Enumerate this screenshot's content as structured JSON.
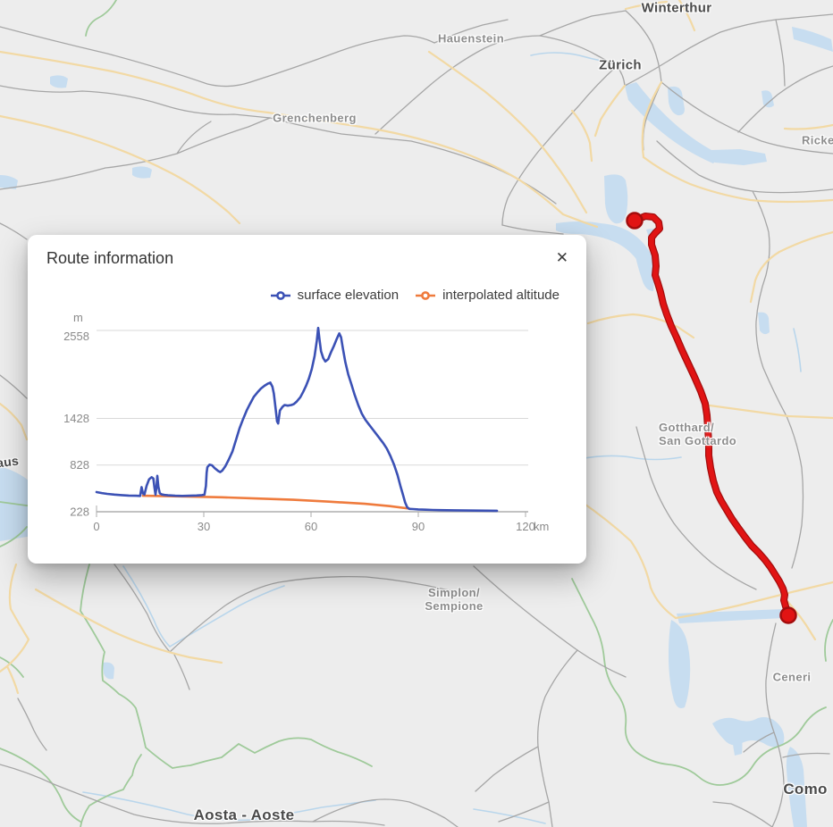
{
  "panel": {
    "title": "Route information",
    "close_label": "✕",
    "legend": [
      {
        "label": "surface elevation",
        "color": "#3b51b5"
      },
      {
        "label": "interpolated altitude",
        "color": "#ef7b3d"
      }
    ]
  },
  "chart_data": {
    "type": "line",
    "title": "",
    "xlabel": "km",
    "ylabel": "m",
    "xticks": [
      0,
      30,
      60,
      90,
      120
    ],
    "yticks": [
      228,
      828,
      1428,
      2558
    ],
    "xlim": [
      0,
      122.5
    ],
    "ylim": [
      228,
      2600
    ],
    "grid": "horizontal",
    "legend_position": "top-right",
    "series": [
      {
        "name": "surface elevation",
        "color": "#3b51b5",
        "points": [
          [
            0,
            480
          ],
          [
            1.5,
            468
          ],
          [
            3,
            458
          ],
          [
            5,
            448
          ],
          [
            7,
            441
          ],
          [
            9,
            436
          ],
          [
            11,
            433
          ],
          [
            12.2,
            431
          ],
          [
            12.6,
            545
          ],
          [
            13,
            462
          ],
          [
            13.4,
            450
          ],
          [
            14,
            560
          ],
          [
            14.7,
            645
          ],
          [
            15.4,
            672
          ],
          [
            15.9,
            655
          ],
          [
            16.2,
            540
          ],
          [
            16.5,
            448
          ],
          [
            16.8,
            555
          ],
          [
            17,
            690
          ],
          [
            17.3,
            550
          ],
          [
            17.7,
            465
          ],
          [
            18.3,
            450
          ],
          [
            19,
            444
          ],
          [
            20,
            439
          ],
          [
            22,
            433
          ],
          [
            24,
            431
          ],
          [
            26,
            433
          ],
          [
            28,
            437
          ],
          [
            29.5,
            441
          ],
          [
            30.2,
            448
          ],
          [
            30.6,
            560
          ],
          [
            30.8,
            730
          ],
          [
            31,
            800
          ],
          [
            31.6,
            833
          ],
          [
            32.3,
            825
          ],
          [
            33,
            790
          ],
          [
            34,
            752
          ],
          [
            34.6,
            738
          ],
          [
            35.2,
            758
          ],
          [
            36,
            810
          ],
          [
            37,
            900
          ],
          [
            38,
            1000
          ],
          [
            39,
            1150
          ],
          [
            40,
            1300
          ],
          [
            41,
            1420
          ],
          [
            42,
            1530
          ],
          [
            43,
            1620
          ],
          [
            44,
            1705
          ],
          [
            45,
            1762
          ],
          [
            46,
            1812
          ],
          [
            47,
            1848
          ],
          [
            48,
            1876
          ],
          [
            48.6,
            1888
          ],
          [
            49.2,
            1835
          ],
          [
            49.6,
            1745
          ],
          [
            50.1,
            1550
          ],
          [
            50.5,
            1390
          ],
          [
            50.8,
            1362
          ],
          [
            51.3,
            1530
          ],
          [
            52,
            1575
          ],
          [
            52.6,
            1600
          ],
          [
            53.5,
            1592
          ],
          [
            54.5,
            1600
          ],
          [
            55.2,
            1612
          ],
          [
            56,
            1645
          ],
          [
            57,
            1700
          ],
          [
            57.8,
            1768
          ],
          [
            58.6,
            1845
          ],
          [
            59.4,
            1940
          ],
          [
            60.2,
            2060
          ],
          [
            61,
            2230
          ],
          [
            61.6,
            2420
          ],
          [
            62,
            2590
          ],
          [
            62.4,
            2430
          ],
          [
            62.8,
            2290
          ],
          [
            63.4,
            2205
          ],
          [
            64,
            2160
          ],
          [
            64.8,
            2190
          ],
          [
            65.6,
            2280
          ],
          [
            66.4,
            2360
          ],
          [
            67.2,
            2450
          ],
          [
            67.9,
            2520
          ],
          [
            68.4,
            2470
          ],
          [
            68.9,
            2330
          ],
          [
            69.6,
            2150
          ],
          [
            70.4,
            1995
          ],
          [
            71.2,
            1880
          ],
          [
            72.2,
            1730
          ],
          [
            73.2,
            1600
          ],
          [
            74.2,
            1490
          ],
          [
            75.2,
            1410
          ],
          [
            76.2,
            1350
          ],
          [
            77.2,
            1290
          ],
          [
            78.2,
            1230
          ],
          [
            79.2,
            1170
          ],
          [
            80.2,
            1110
          ],
          [
            81.2,
            1040
          ],
          [
            82.2,
            945
          ],
          [
            83.2,
            835
          ],
          [
            84.2,
            700
          ],
          [
            85,
            560
          ],
          [
            85.7,
            450
          ],
          [
            86.3,
            350
          ],
          [
            86.9,
            285
          ],
          [
            87.5,
            265
          ],
          [
            88.5,
            262
          ],
          [
            90,
            258
          ],
          [
            92,
            254
          ],
          [
            94,
            251
          ],
          [
            96,
            249
          ],
          [
            98,
            247
          ],
          [
            100,
            246
          ],
          [
            103,
            244
          ],
          [
            106,
            243
          ],
          [
            109,
            242
          ],
          [
            112,
            241
          ]
        ]
      },
      {
        "name": "interpolated altitude",
        "color": "#ef7b3d",
        "points": [
          [
            13,
            433
          ],
          [
            25,
            424
          ],
          [
            35,
            414
          ],
          [
            45,
            398
          ],
          [
            55,
            382
          ],
          [
            65,
            358
          ],
          [
            75,
            330
          ],
          [
            82,
            300
          ],
          [
            87.5,
            268
          ]
        ]
      }
    ]
  },
  "map": {
    "colors": {
      "background": "#ededed",
      "water": "#c7ddf0",
      "river": "#b9d6ec",
      "road_major": "#f2d9a4",
      "road_minor": "#a6a6a6",
      "border": "#9fca9a",
      "route": "#e11414",
      "route_casing": "#a30d0d",
      "label_city": "#4a4a4a",
      "label_region": "#8d8d8d"
    },
    "labels": [
      {
        "id": "winterthur",
        "text": "Winterthur",
        "kind": "city"
      },
      {
        "id": "hauenstein",
        "text": "Hauenstein",
        "kind": "region"
      },
      {
        "id": "zurich",
        "text": "Zürich",
        "kind": "city"
      },
      {
        "id": "ricken",
        "text": "Ricke",
        "kind": "region"
      },
      {
        "id": "grenchenberg",
        "text": "Grenchenberg",
        "kind": "region"
      },
      {
        "id": "gotthard",
        "text": "Gotthard/\nSan Gottardo",
        "kind": "region"
      },
      {
        "id": "lausanne-partial",
        "text": "aus",
        "kind": "city"
      },
      {
        "id": "simplon",
        "text": "Simplon/\nSempione",
        "kind": "region"
      },
      {
        "id": "ceneri",
        "text": "Ceneri",
        "kind": "region"
      },
      {
        "id": "como",
        "text": "Como",
        "kind": "city"
      },
      {
        "id": "aosta",
        "text": "Aosta - Aoste",
        "kind": "city"
      }
    ]
  }
}
